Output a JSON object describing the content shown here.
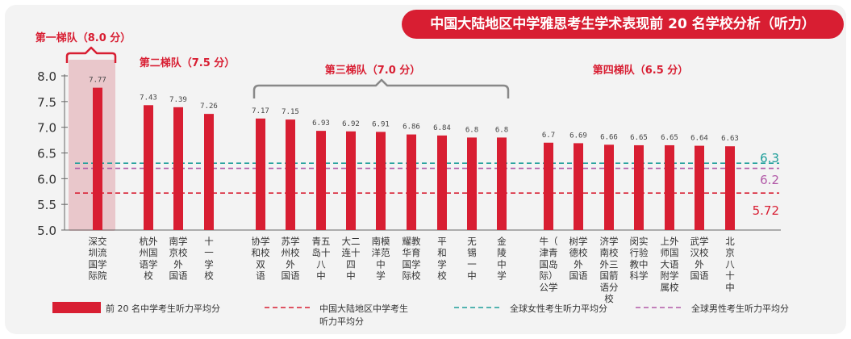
{
  "title": "中国大陆地区中学雅思考生学术表现前 20 名学校分析（听力）",
  "colors": {
    "bar": "#d81e32",
    "china_line": "#d81e32",
    "female_line": "#1e9e9a",
    "male_line": "#b25aa8",
    "tier_text": "#d81e32",
    "bracket": "#888888",
    "highlight_bg": "#e9c7cb"
  },
  "tiers": [
    {
      "label": "第一梯队（8.0 分）",
      "first": 0,
      "last": 0
    },
    {
      "label": "第二梯队（7.5 分）",
      "first": 1,
      "last": 3
    },
    {
      "label": "第三梯队（7.0 分）",
      "first": 4,
      "last": 11
    },
    {
      "label": "第四梯队（6.5 分）",
      "first": 12,
      "last": 18
    }
  ],
  "reference_lines": [
    {
      "key": "female",
      "value": 6.3,
      "label": "6.3"
    },
    {
      "key": "male",
      "value": 6.2,
      "label": "6.2"
    },
    {
      "key": "china",
      "value": 5.72,
      "label": "5.72"
    }
  ],
  "legend": [
    {
      "key": "bar",
      "label": "前 20 名中学考生听力平均分"
    },
    {
      "key": "china",
      "label": "中国大陆地区中学考生\n听力平均分"
    },
    {
      "key": "female",
      "label": "全球女性考生听力平均分"
    },
    {
      "key": "male",
      "label": "全球男性考生听力平均分"
    }
  ],
  "chart_data": {
    "type": "bar",
    "title": "中国大陆地区中学雅思考生学术表现前 20 名学校分析（听力）",
    "ylim": [
      5.0,
      8.0
    ],
    "yticks": [
      "5.0",
      "5.5",
      "6.0",
      "6.5",
      "7.0",
      "7.5",
      "8.0"
    ],
    "categories": [
      "深交圳流国学际院",
      "杭外州国语学校",
      "南学京校外国语",
      "十一学校",
      "协学和校双语",
      "苏学州校外国语",
      "青五岛十八中",
      "大二连十四中",
      "南模洋范中学",
      "耀教华育国学际校",
      "平和学校",
      "无锡一中",
      "金陵中学",
      "牛（青津岛）国公际学",
      "树学德校外国语",
      "济学南校外三国箭语分校",
      "闵实行验中科学",
      "上外师国大语附学属校",
      "武学汉校外国语",
      "北京八十中"
    ],
    "category_columns": [
      [
        "深交",
        "圳流",
        "国学",
        "际院"
      ],
      [
        "杭外",
        "州国",
        "语学",
        "校"
      ],
      [
        "南学",
        "京校",
        "外",
        "国语"
      ],
      [
        "十",
        "一",
        "学",
        "校"
      ],
      [
        "协学",
        "和校",
        "双",
        "语"
      ],
      [
        "苏学",
        "州校",
        "外",
        "国语"
      ],
      [
        "青五",
        "岛十",
        "八",
        "中"
      ],
      [
        "大二",
        "连十",
        "四",
        "中"
      ],
      [
        "南模",
        "洋范",
        "中",
        "学"
      ],
      [
        "耀教",
        "华育",
        "国学",
        "际校"
      ],
      [
        "平",
        "和",
        "学",
        "校"
      ],
      [
        "无",
        "锡",
        "一",
        "中"
      ],
      [
        "金",
        "陵",
        "中",
        "学"
      ],
      [
        "牛（",
        "津青",
        "国岛",
        "际）",
        "公学"
      ],
      [
        "树学",
        "德校",
        "外",
        "国语"
      ],
      [
        "济学",
        "南校",
        "外三",
        "国箭",
        "语分",
        "校"
      ],
      [
        "闵实",
        "行验",
        "教中",
        "科学"
      ],
      [
        "上外",
        "师国",
        "大语",
        "附学",
        "属校"
      ],
      [
        "武学",
        "汉校",
        "外",
        "国语"
      ],
      [
        "北",
        "京",
        "八",
        "十",
        "中"
      ]
    ],
    "values": [
      7.77,
      7.43,
      7.39,
      7.26,
      7.17,
      7.15,
      6.93,
      6.92,
      6.91,
      6.86,
      6.84,
      6.8,
      6.8,
      6.7,
      6.69,
      6.66,
      6.65,
      6.65,
      6.64,
      6.63
    ],
    "value_labels": [
      "7.77",
      "7.43",
      "7.39",
      "7.26",
      "7.17",
      "7.15",
      "6.93",
      "6.92",
      "6.91",
      "6.86",
      "6.84",
      "6.8",
      "6.8",
      "6.7",
      "6.69",
      "6.66",
      "6.65",
      "6.65",
      "6.64",
      "6.63"
    ]
  }
}
